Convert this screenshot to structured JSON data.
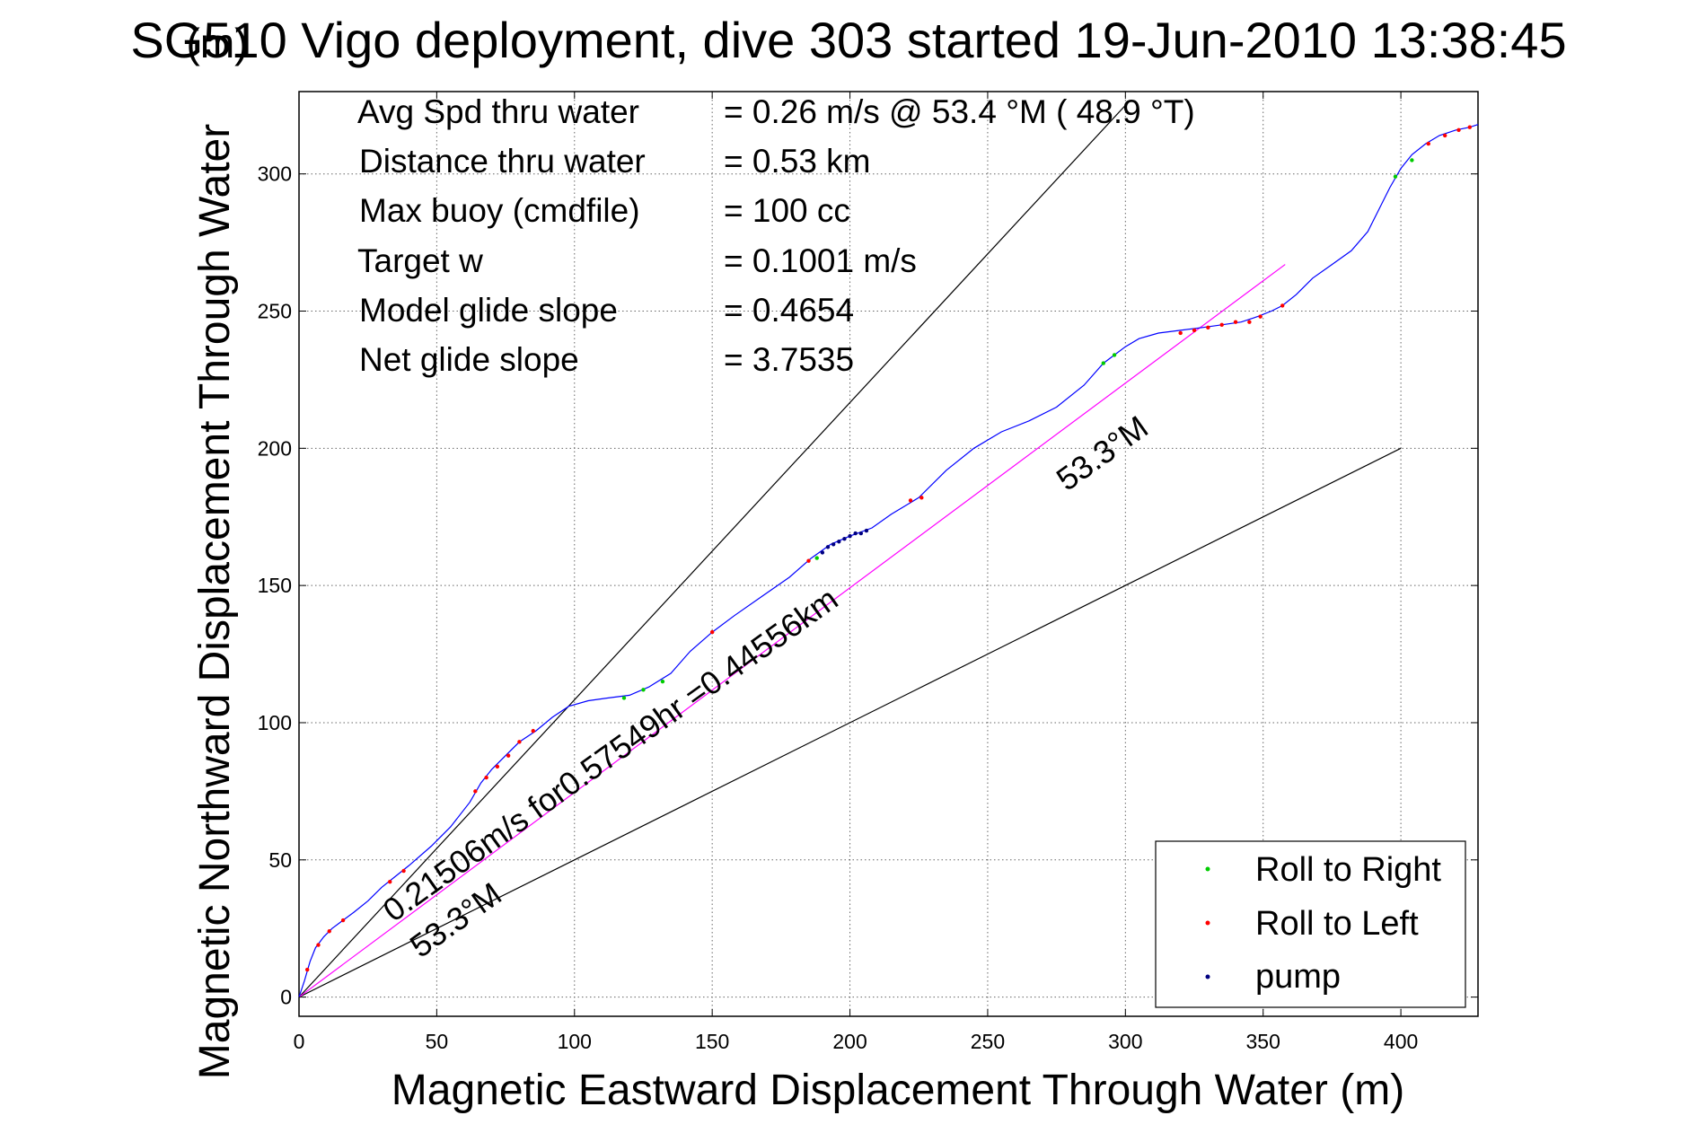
{
  "chart_data": {
    "type": "line",
    "title": "SG510 Vigo deployment, dive 303 started 19-Jun-2010 13:38:45",
    "title_overlay": "(m)",
    "xlabel": "Magnetic Eastward Displacement Through Water (m)",
    "ylabel": "Magnetic Northward Displacement Through Water",
    "xlim": [
      0,
      428
    ],
    "ylim": [
      -7,
      330
    ],
    "xticks": [
      0,
      50,
      100,
      150,
      200,
      250,
      300,
      350,
      400
    ],
    "yticks": [
      0,
      50,
      100,
      150,
      200,
      250,
      300
    ],
    "grid": true,
    "stats": [
      {
        "label": "Avg Spd thru water",
        "value": "=  0.26 m/s @  53.4 °M ( 48.9 °T)"
      },
      {
        "label": "Distance thru water",
        "value": "=  0.53 km"
      },
      {
        "label": "Max buoy (cmdfile)",
        "value": "= 100 cc"
      },
      {
        "label": "Target w",
        "value": "= 0.1001 m/s"
      },
      {
        "label": "Model glide slope",
        "value": "= 0.4654"
      },
      {
        "label": "Net glide slope",
        "value": "= 3.7535"
      }
    ],
    "annotations": [
      {
        "text": "0.21506m/s for0.57549hr =0.44556km",
        "x": 30,
        "y": 30
      },
      {
        "text": "53.3°M",
        "x": 42,
        "y": 25
      },
      {
        "text": "53.3°M",
        "x": 276,
        "y": 188
      }
    ],
    "reference_lines": [
      {
        "x": [
          0,
          300
        ],
        "y": [
          0,
          325
        ],
        "color": "#000000"
      },
      {
        "x": [
          0,
          400
        ],
        "y": [
          0,
          200
        ],
        "color": "#000000"
      },
      {
        "x": [
          0,
          358
        ],
        "y": [
          0,
          267
        ],
        "color": "#ff00ff"
      }
    ],
    "track": {
      "color": "#0000ff",
      "x": [
        0,
        2,
        4,
        6,
        9,
        12,
        16,
        20,
        25,
        30,
        35,
        40,
        48,
        55,
        62,
        66,
        70,
        75,
        80,
        86,
        92,
        98,
        105,
        112,
        120,
        127,
        135,
        142,
        150,
        158,
        168,
        178,
        186,
        193,
        200,
        208,
        215,
        225,
        235,
        245,
        255,
        265,
        275,
        285,
        292,
        296,
        300,
        305,
        312,
        320,
        328,
        335,
        342,
        348,
        353,
        357,
        362,
        368,
        375,
        382,
        388,
        392,
        396,
        400,
        404,
        409,
        414,
        420,
        425,
        428
      ],
      "y": [
        0,
        6,
        13,
        18,
        22,
        25,
        28,
        31,
        35,
        40,
        44,
        48,
        55,
        62,
        71,
        78,
        83,
        88,
        93,
        97,
        102,
        106,
        108,
        109,
        110,
        113,
        118,
        126,
        133,
        139,
        146,
        153,
        160,
        165,
        168,
        171,
        176,
        182,
        192,
        200,
        206,
        210,
        215,
        223,
        231,
        234,
        237,
        240,
        242,
        243,
        244,
        245,
        246,
        248,
        250,
        252,
        256,
        262,
        267,
        272,
        279,
        287,
        295,
        302,
        307,
        311,
        314,
        316,
        317,
        318
      ]
    },
    "markers": {
      "roll_right": {
        "color": "#00cc00",
        "x": [
          118,
          125,
          132,
          188,
          292,
          296,
          398,
          404
        ],
        "y": [
          109,
          112,
          115,
          160,
          231,
          234,
          299,
          305
        ]
      },
      "roll_left": {
        "color": "#ff0000",
        "x": [
          3,
          7,
          11,
          16,
          33,
          38,
          64,
          68,
          72,
          76,
          80,
          85,
          150,
          185,
          222,
          226,
          320,
          325,
          330,
          335,
          340,
          345,
          349,
          357,
          410,
          416,
          421,
          425
        ],
        "y": [
          10,
          19,
          24,
          28,
          42,
          46,
          75,
          80,
          84,
          88,
          93,
          97,
          133,
          159,
          181,
          182,
          242,
          243,
          244,
          245,
          246,
          246,
          248,
          252,
          311,
          314,
          316,
          317
        ]
      },
      "pump": {
        "color": "#000080",
        "x": [
          190,
          192,
          194,
          196,
          198,
          200,
          202,
          204,
          206
        ],
        "y": [
          162,
          164,
          165,
          166,
          167,
          168,
          169,
          169,
          170
        ]
      }
    },
    "legend": {
      "placement": "bottom-right",
      "items": [
        {
          "name": "Roll to Right",
          "color": "#00cc00"
        },
        {
          "name": "Roll to Left",
          "color": "#ff0000"
        },
        {
          "name": "pump",
          "color": "#000080"
        }
      ]
    }
  }
}
